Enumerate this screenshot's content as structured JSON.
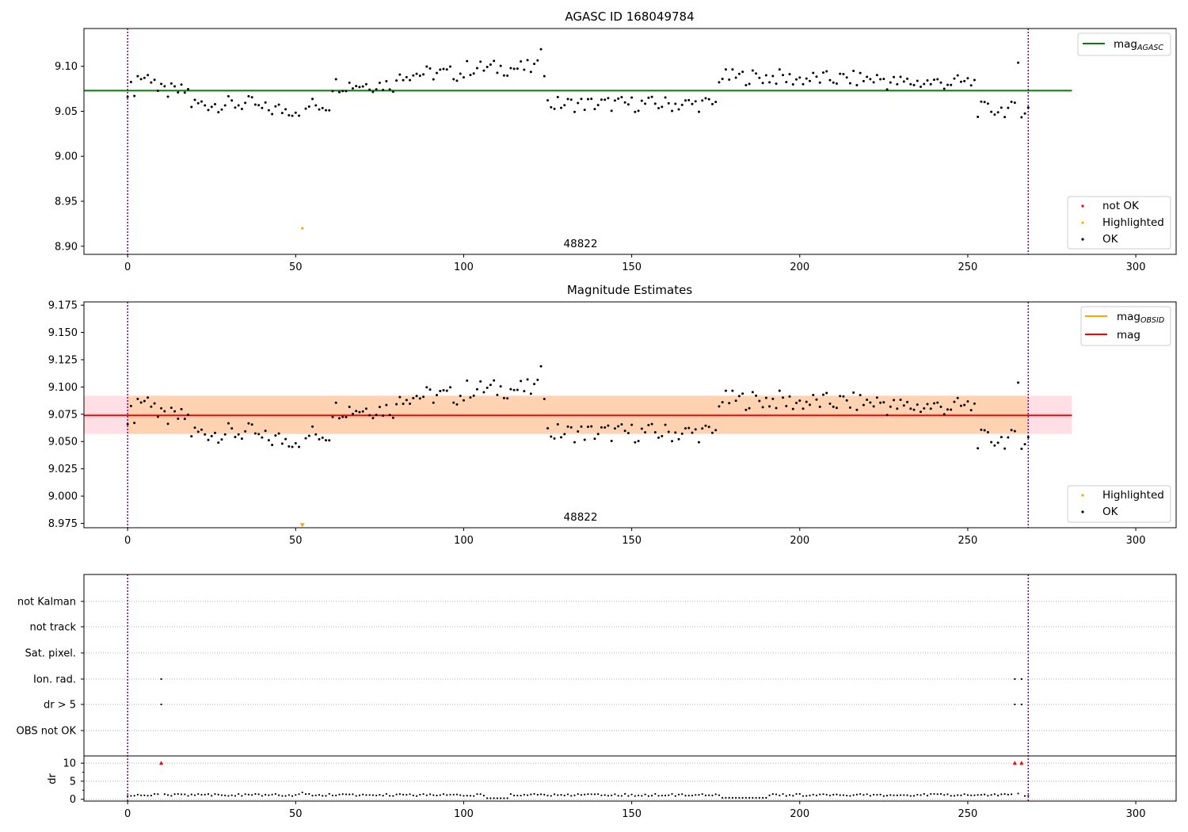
{
  "chart_data": [
    {
      "type": "scatter",
      "title": "AGASC ID 168049784",
      "annotation": "48822",
      "xlim": [
        -13,
        312
      ],
      "ylim": [
        8.891,
        9.142
      ],
      "xticks": [
        0,
        50,
        100,
        150,
        200,
        250,
        300
      ],
      "yticks": [
        8.9,
        8.95,
        9.0,
        9.05,
        9.1
      ],
      "xlabel": "",
      "ylabel": "",
      "grid": false,
      "vlines": [
        0,
        268
      ],
      "legend_lines": {
        "placement": "top-right",
        "entries": [
          {
            "label": "mag",
            "sub": "AGASC",
            "color": "#008000"
          }
        ]
      },
      "legend_points": {
        "placement": "bottom-right",
        "entries": [
          {
            "label": "not OK",
            "color": "#ff0000"
          },
          {
            "label": "Highlighted",
            "color": "#ffa500"
          },
          {
            "label": "OK",
            "color": "#000000"
          }
        ]
      },
      "mag_line": {
        "value": 9.073,
        "x_range": [
          -13,
          281
        ],
        "color": "#008000"
      },
      "highlighted": {
        "x": [
          52
        ],
        "y": [
          8.92
        ]
      }
    },
    {
      "type": "scatter",
      "title": "Magnitude Estimates",
      "annotation": "48822",
      "xlim": [
        -13,
        312
      ],
      "ylim": [
        8.971,
        9.178
      ],
      "xticks": [
        0,
        50,
        100,
        150,
        200,
        250,
        300
      ],
      "yticks": [
        8.975,
        9.0,
        9.025,
        9.05,
        9.075,
        9.1,
        9.125,
        9.15,
        9.175
      ],
      "xlabel": "",
      "ylabel": "",
      "grid": false,
      "vlines": [
        0,
        268
      ],
      "legend_lines": {
        "placement": "top-right",
        "entries": [
          {
            "label": "mag",
            "sub": "OBSID",
            "color": "#ffa500"
          },
          {
            "label": "mag",
            "sub": "",
            "color": "#ff0000"
          }
        ]
      },
      "legend_points": {
        "placement": "bottom-right",
        "entries": [
          {
            "label": "Highlighted",
            "color": "#ffa500"
          },
          {
            "label": "OK",
            "color": "#000000"
          }
        ]
      },
      "mag_line": {
        "value": 9.074,
        "x_range": [
          -13,
          281
        ],
        "color": "#ff0000"
      },
      "band": {
        "low": 9.057,
        "high": 9.092,
        "x_range": [
          -13,
          281
        ]
      },
      "obsid_band": {
        "low": 9.057,
        "high": 9.092,
        "x_range": [
          0,
          268
        ]
      },
      "highlighted": {
        "x": [
          52
        ],
        "y": [
          8.973
        ]
      }
    },
    {
      "type": "scatter",
      "title": "",
      "flag_rows": [
        "not Kalman",
        "not track",
        "Sat. pixel.",
        "Ion. rad.",
        "dr > 5",
        "OBS not OK"
      ],
      "flags": {
        "Ion. rad.": [
          10,
          264,
          266
        ],
        "dr > 5": [
          10,
          264,
          266
        ]
      },
      "dr_ylabel": "dr",
      "dr_ylim": [
        -0.5,
        12
      ],
      "dr_yticks": [
        0,
        5,
        10
      ],
      "dr_clipped_x": [
        10,
        264,
        266
      ],
      "xlim": [
        -13,
        312
      ],
      "xticks": [
        0,
        50,
        100,
        150,
        200,
        250,
        300
      ],
      "vlines": [
        0,
        268
      ]
    }
  ],
  "colors": {
    "ok": "#000000",
    "not_ok": "#ff0000",
    "highlighted": "#ffa500",
    "vline": "#800080"
  }
}
